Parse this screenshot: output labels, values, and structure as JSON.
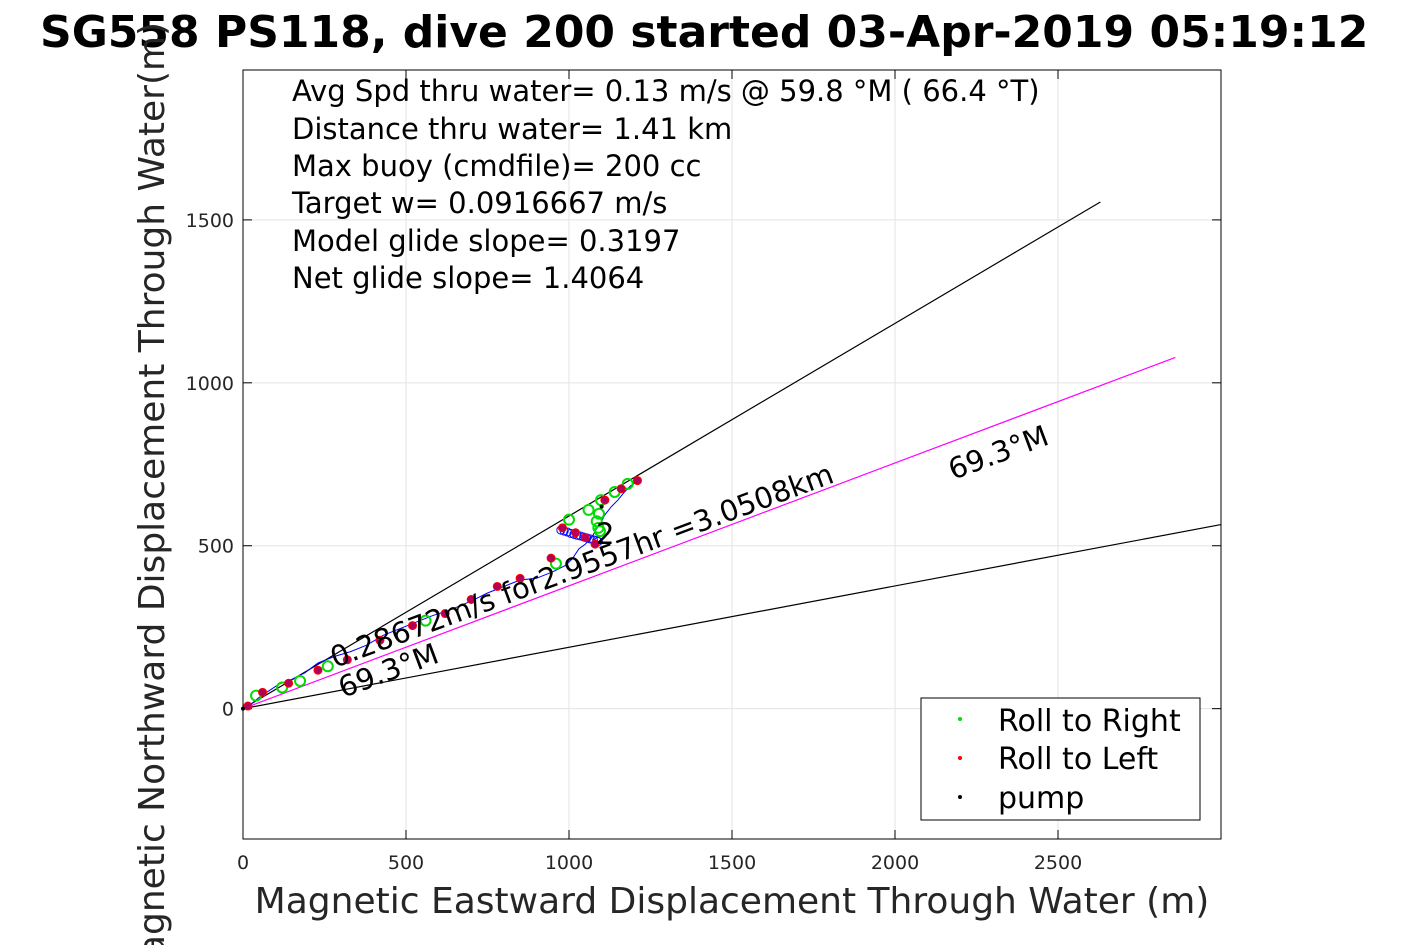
{
  "chart_data": {
    "type": "scatter",
    "title": "SG558 PS118, dive 200 started 03-Apr-2019 05:19:12",
    "xlabel": "Magnetic Eastward Displacement Through Water (m)",
    "ylabel": "Magnetic Northward Displacement Through Water(m)",
    "xlim": [
      0,
      3000
    ],
    "ylim": [
      -400,
      1960
    ],
    "xticks": [
      0,
      500,
      1000,
      1500,
      2000,
      2500
    ],
    "yticks": [
      0,
      500,
      1000,
      1500
    ],
    "grid": true,
    "info_lines": [
      "Avg Spd thru water=  0.13 m/s @  59.8 °M ( 66.4 °T)",
      "Distance thru water=  1.41 km",
      "Max buoy (cmdfile)= 200 cc",
      "Target w= 0.0916667 m/s",
      "Model glide slope= 0.3197",
      "Net glide slope= 1.4064"
    ],
    "annotations": [
      "0.28672m/s for2.9557hr =3.0508km",
      "69.3°M",
      "69.3°M",
      "2"
    ],
    "reference_lines": [
      {
        "color": "#000000",
        "from": [
          0,
          0
        ],
        "to": [
          2630,
          1555
        ]
      },
      {
        "color": "#ff00ff",
        "from": [
          0,
          0
        ],
        "to": [
          2860,
          1078
        ]
      },
      {
        "color": "#000000",
        "from": [
          0,
          0
        ],
        "to": [
          3000,
          565
        ]
      }
    ],
    "track": [
      [
        0,
        0
      ],
      [
        20,
        10
      ],
      [
        50,
        35
      ],
      [
        80,
        55
      ],
      [
        110,
        75
      ],
      [
        150,
        90
      ],
      [
        190,
        110
      ],
      [
        230,
        140
      ],
      [
        280,
        160
      ],
      [
        330,
        175
      ],
      [
        380,
        195
      ],
      [
        430,
        225
      ],
      [
        480,
        245
      ],
      [
        530,
        265
      ],
      [
        580,
        285
      ],
      [
        640,
        305
      ],
      [
        700,
        330
      ],
      [
        750,
        355
      ],
      [
        800,
        375
      ],
      [
        850,
        395
      ],
      [
        900,
        400
      ],
      [
        950,
        420
      ],
      [
        990,
        440
      ],
      [
        1010,
        460
      ],
      [
        1030,
        490
      ],
      [
        1050,
        505
      ],
      [
        1070,
        525
      ],
      [
        1080,
        545
      ],
      [
        1090,
        560
      ],
      [
        1100,
        575
      ],
      [
        1110,
        595
      ],
      [
        1130,
        620
      ],
      [
        1150,
        640
      ],
      [
        1170,
        665
      ],
      [
        1190,
        685
      ],
      [
        1215,
        700
      ]
    ],
    "circle_track": [
      [
        975,
        548
      ],
      [
        985,
        545
      ],
      [
        995,
        542
      ],
      [
        1005,
        538
      ],
      [
        1015,
        535
      ],
      [
        1025,
        532
      ],
      [
        1035,
        530
      ],
      [
        1045,
        527
      ],
      [
        1055,
        524
      ],
      [
        1065,
        521
      ],
      [
        1075,
        518
      ],
      [
        1085,
        516
      ],
      [
        1090,
        513
      ]
    ],
    "series": [
      {
        "name": "Roll to Right",
        "color": "#00dd00",
        "points": [
          [
            40,
            40
          ],
          [
            120,
            65
          ],
          [
            175,
            85
          ],
          [
            260,
            130
          ],
          [
            560,
            270
          ],
          [
            960,
            445
          ],
          [
            1000,
            580
          ],
          [
            1060,
            610
          ],
          [
            1085,
            575
          ],
          [
            1090,
            555
          ],
          [
            1095,
            545
          ],
          [
            1092,
            598
          ],
          [
            1098,
            640
          ],
          [
            1140,
            665
          ],
          [
            1180,
            690
          ]
        ]
      },
      {
        "name": "Roll to Left",
        "color": "#ff0000",
        "points": [
          [
            15,
            8
          ],
          [
            60,
            50
          ],
          [
            140,
            78
          ],
          [
            230,
            118
          ],
          [
            320,
            150
          ],
          [
            420,
            210
          ],
          [
            520,
            255
          ],
          [
            620,
            292
          ],
          [
            700,
            335
          ],
          [
            780,
            375
          ],
          [
            850,
            400
          ],
          [
            945,
            462
          ],
          [
            980,
            555
          ],
          [
            1020,
            540
          ],
          [
            1050,
            525
          ],
          [
            1080,
            505
          ],
          [
            1110,
            640
          ],
          [
            1160,
            675
          ],
          [
            1210,
            700
          ]
        ]
      },
      {
        "name": "pump",
        "color": "#000000",
        "points": [
          [
            0,
            0
          ],
          [
            1100,
            620
          ]
        ]
      }
    ]
  }
}
